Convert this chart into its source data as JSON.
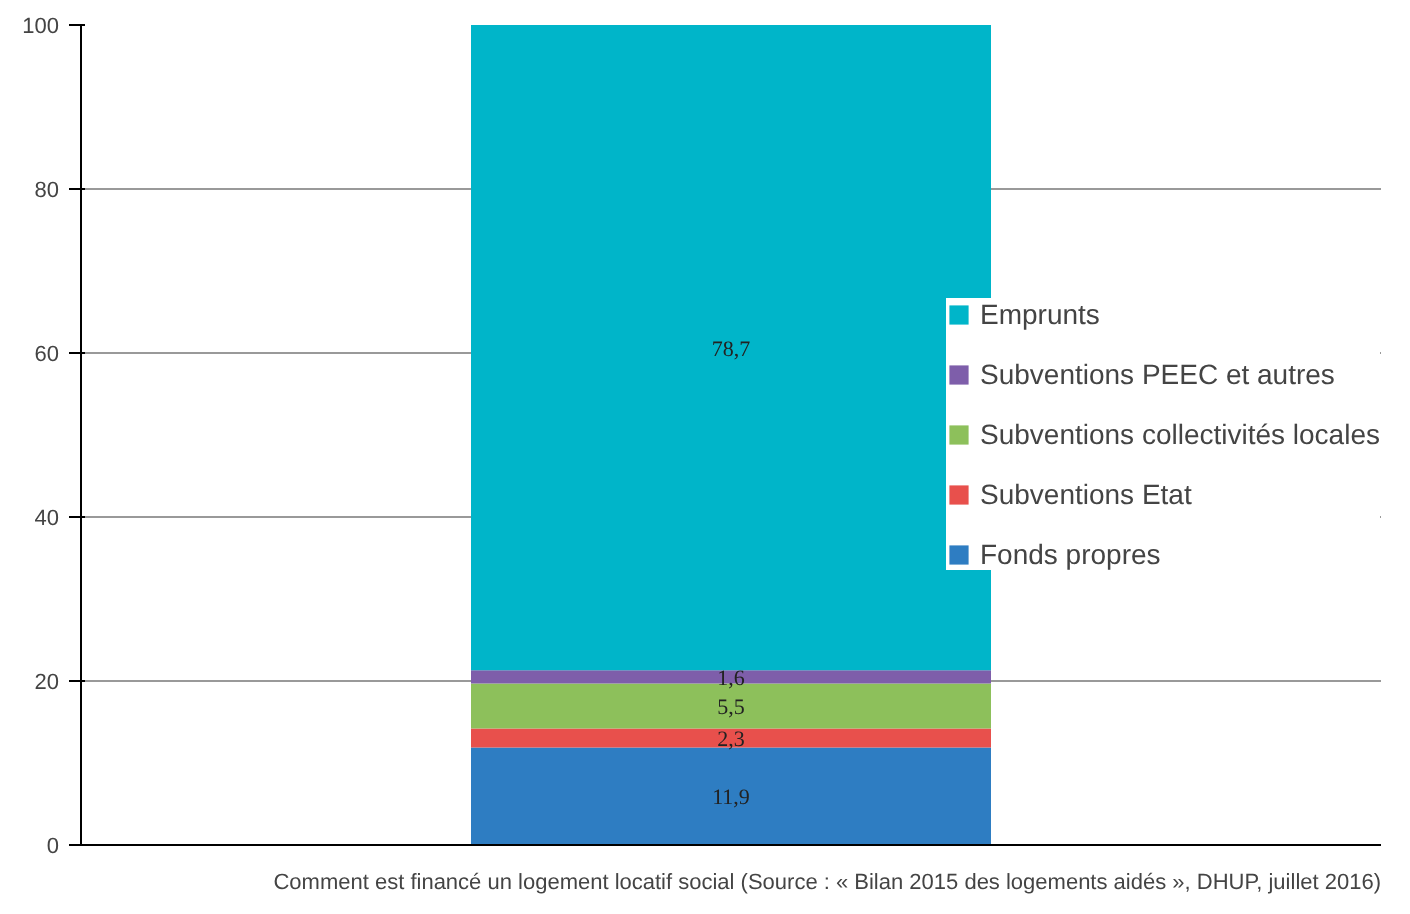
{
  "chart_data": {
    "type": "bar",
    "stacked": true,
    "categories": [
      null
    ],
    "series": [
      {
        "name": "Fonds propres",
        "color": "#2e7dc2",
        "values": [
          11.9
        ],
        "value_labels": [
          "11,9"
        ]
      },
      {
        "name": "Subventions Etat",
        "color": "#e8504c",
        "values": [
          2.3
        ],
        "value_labels": [
          "2,3"
        ]
      },
      {
        "name": "Subventions collectivités locales",
        "color": "#8dc05b",
        "values": [
          5.5
        ],
        "value_labels": [
          "5,5"
        ]
      },
      {
        "name": "Subventions PEEC et autres",
        "color": "#7e5eaa",
        "values": [
          1.6
        ],
        "value_labels": [
          "1,6"
        ]
      },
      {
        "name": "Emprunts",
        "color": "#00b5c9",
        "values": [
          78.7
        ],
        "value_labels": [
          "78,7"
        ]
      }
    ],
    "ylim": [
      0,
      100
    ],
    "yticks": [
      0,
      20,
      40,
      60,
      80,
      100
    ],
    "grid": "y",
    "legend": "right",
    "tick_labels": "y",
    "annotations": [
      "Comment est financé un logement locatif social (Source : « Bilan 2015 des logements aidés », DHUP, juillet 2016)"
    ]
  }
}
